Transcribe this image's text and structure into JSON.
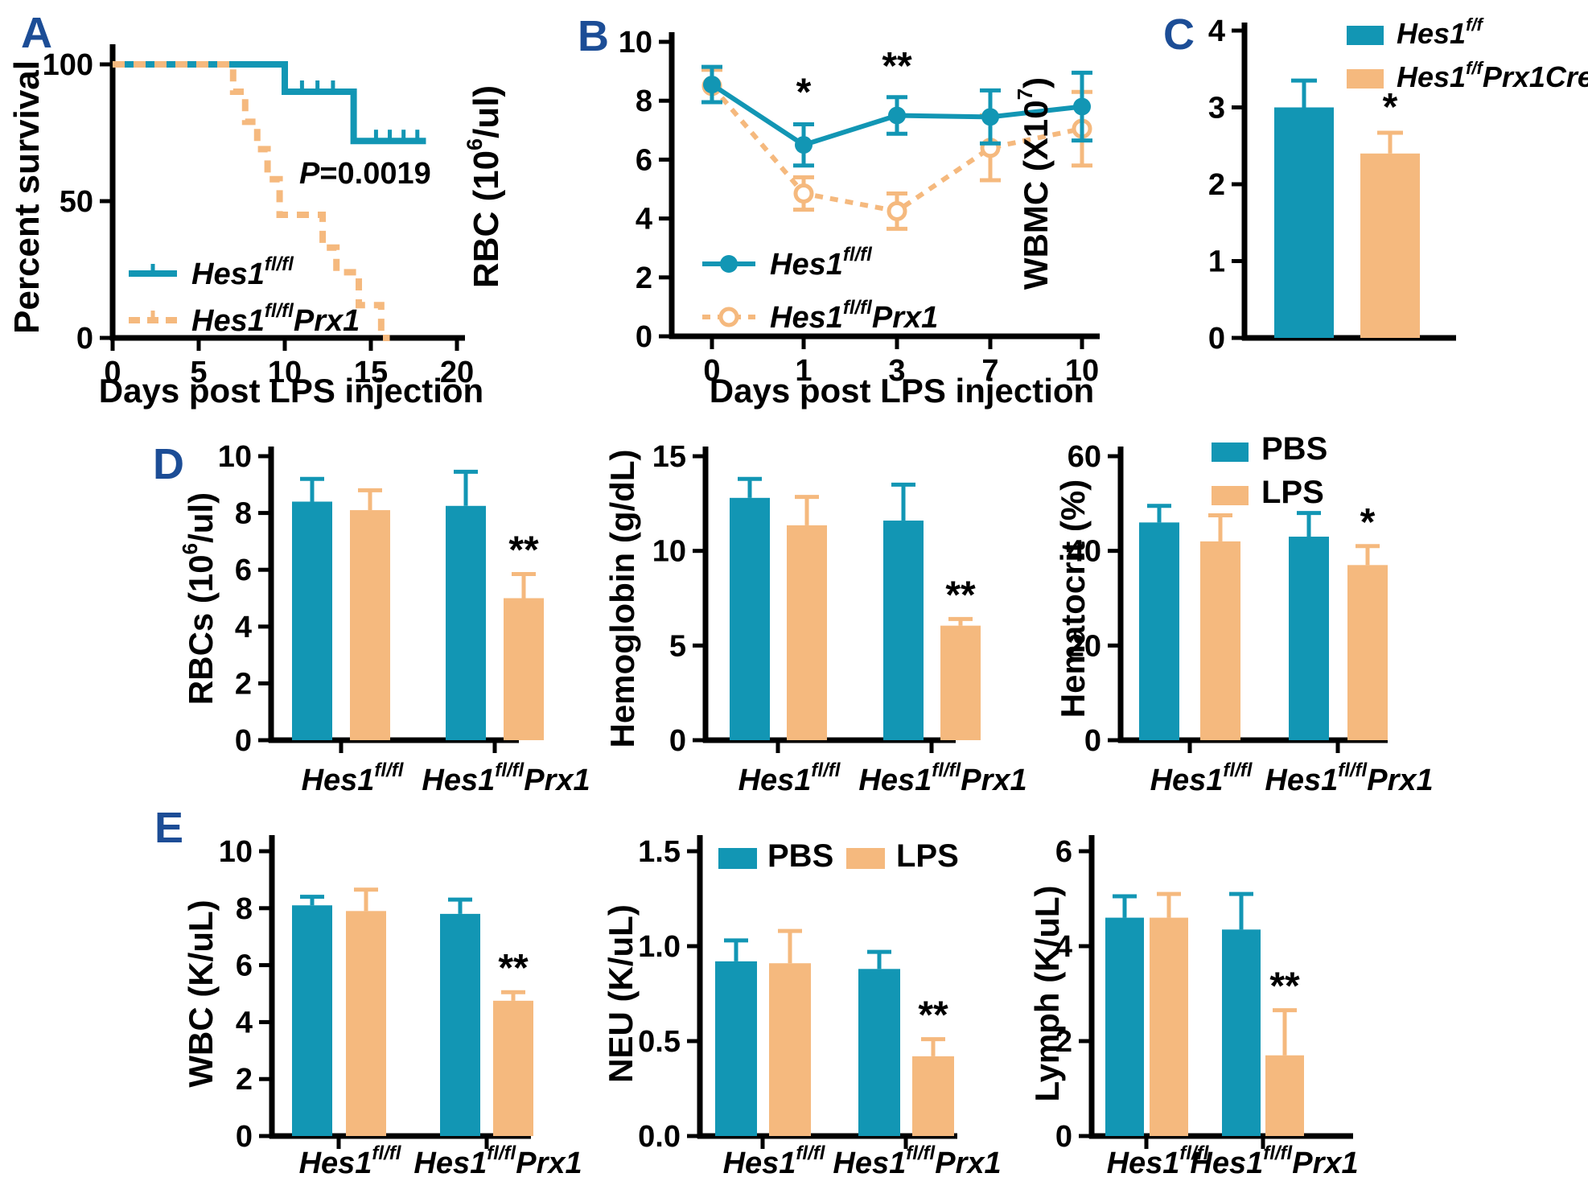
{
  "colors": {
    "teal": "#1296B4",
    "orange": "#F5B97E",
    "panel_label": "#1C4D96",
    "axis": "#000000"
  },
  "panel_letters": {
    "A": "A",
    "B": "B",
    "C": "C",
    "D": "D",
    "E": "E"
  },
  "chart_data": [
    {
      "id": "A",
      "type": "km_step",
      "title": "",
      "ylabel": "Percent survival",
      "xlabel": "Days post  LPS injection",
      "yticks": [
        0,
        50,
        100
      ],
      "xticks": [
        0,
        5,
        10,
        15,
        20
      ],
      "xlim": [
        0,
        21
      ],
      "ylim": [
        0,
        100
      ],
      "grid": false,
      "pvalue": {
        "italic": "P",
        "rest": "=0.0019"
      },
      "series": [
        {
          "name": "Hes1 fl/fl",
          "color": "teal",
          "dashed": false,
          "steps": [
            [
              0,
              100
            ],
            [
              10,
              100
            ],
            [
              10,
              90
            ],
            [
              14,
              90
            ],
            [
              14,
              72
            ],
            [
              18.2,
              72
            ]
          ],
          "censors": [
            [
              11,
              90
            ],
            [
              11.9,
              90
            ],
            [
              12.8,
              90
            ],
            [
              15.3,
              72
            ],
            [
              16.1,
              72
            ],
            [
              16.9,
              72
            ],
            [
              17.7,
              72
            ]
          ]
        },
        {
          "name": "Hes1 fl/fl Prx1",
          "color": "orange",
          "dashed": true,
          "steps": [
            [
              0,
              100
            ],
            [
              7,
              100
            ],
            [
              7,
              90
            ],
            [
              7.7,
              90
            ],
            [
              7.7,
              79
            ],
            [
              8.4,
              79
            ],
            [
              8.4,
              69
            ],
            [
              9,
              69
            ],
            [
              9,
              58
            ],
            [
              9.7,
              58
            ],
            [
              9.7,
              45
            ],
            [
              12.2,
              45
            ],
            [
              12.2,
              33
            ],
            [
              13,
              33
            ],
            [
              13,
              24
            ],
            [
              14.3,
              24
            ],
            [
              14.3,
              12
            ],
            [
              15.6,
              12
            ],
            [
              15.6,
              0
            ],
            [
              16.1,
              0
            ]
          ],
          "censors": []
        }
      ],
      "legend": [
        {
          "base": "Hes1",
          "sup": "fl/fl",
          "tail": "",
          "color": "teal"
        },
        {
          "base": "Hes1",
          "sup": "fl/fl",
          "tail": "Prx1",
          "color": "orange"
        }
      ]
    },
    {
      "id": "B",
      "type": "line_error",
      "ylabel": {
        "pre": "RBC (10",
        "sup": "6",
        "post": "/ul)"
      },
      "xlabel": "Days post LPS injection",
      "categories": [
        "0",
        "1",
        "3",
        "7",
        "10"
      ],
      "yticks": [
        0,
        2,
        4,
        6,
        8,
        10
      ],
      "ylim": [
        0,
        10
      ],
      "grid": false,
      "series": [
        {
          "name": "Hes1 fl/fl",
          "color": "teal",
          "dashed": false,
          "marker": "filled",
          "values": [
            8.55,
            6.5,
            7.5,
            7.45,
            7.8
          ],
          "errors": [
            0.6,
            0.7,
            0.62,
            0.9,
            1.15
          ]
        },
        {
          "name": "Hes1 fl/fl Prx1",
          "color": "orange",
          "dashed": true,
          "marker": "open",
          "values": [
            8.5,
            4.85,
            4.25,
            6.4,
            7.05
          ],
          "errors": [
            0.55,
            0.55,
            0.6,
            1.1,
            1.25
          ]
        }
      ],
      "sig": [
        {
          "index": 1,
          "text": "*",
          "value": 7.85
        },
        {
          "index": 2,
          "text": "**",
          "value": 8.75
        }
      ],
      "legend": [
        {
          "base": "Hes1",
          "sup": "fl/fl",
          "tail": "",
          "color": "teal"
        },
        {
          "base": "Hes1",
          "sup": "fl/fl",
          "tail": "Prx1",
          "color": "orange"
        }
      ]
    },
    {
      "id": "C",
      "type": "bar",
      "ylabel": {
        "pre": "WBMC (X10",
        "sup": "7",
        "post": ")"
      },
      "yticks": [
        0,
        1,
        2,
        3,
        4
      ],
      "ylim": [
        0,
        4
      ],
      "grid": false,
      "bars": [
        {
          "name": "Hes1 f/f",
          "color": "teal",
          "value": 3.0,
          "error": 0.35,
          "sig": ""
        },
        {
          "name": "Hes1 f/f Prx1Cre",
          "color": "orange",
          "value": 2.4,
          "error": 0.27,
          "sig": "*"
        }
      ],
      "legend": [
        {
          "base": "Hes1",
          "sup": "f/f",
          "tail": "",
          "color": "teal"
        },
        {
          "base": "Hes1",
          "sup": "f/f",
          "tail": "Prx1Cre",
          "color": "orange"
        }
      ]
    },
    {
      "id": "D1",
      "type": "grouped_bar",
      "ylabel": {
        "pre": "RBCs (10",
        "sup": "6",
        "post": "/ul)"
      },
      "yticks": [
        0,
        2,
        4,
        6,
        8,
        10
      ],
      "ylim": [
        0,
        10
      ],
      "grid": false,
      "groups": [
        {
          "base": "Hes1",
          "sup": "fl/fl",
          "tail": ""
        },
        {
          "base": "Hes1",
          "sup": "fl/fl",
          "tail": "Prx1"
        }
      ],
      "series": [
        {
          "name": "PBS",
          "color": "teal",
          "values": [
            8.4,
            8.25
          ],
          "errors": [
            0.8,
            1.2
          ]
        },
        {
          "name": "LPS",
          "color": "orange",
          "values": [
            8.1,
            5.0
          ],
          "errors": [
            0.7,
            0.85
          ]
        }
      ],
      "sig": [
        {
          "group": 1,
          "series": 1,
          "text": "**"
        }
      ]
    },
    {
      "id": "D2",
      "type": "grouped_bar",
      "ylabel": {
        "pre": "Hemoglobin (g/dL)",
        "sup": "",
        "post": ""
      },
      "yticks": [
        0,
        5,
        10,
        15
      ],
      "ylim": [
        0,
        15
      ],
      "grid": false,
      "groups": [
        {
          "base": "Hes1",
          "sup": "fl/fl",
          "tail": ""
        },
        {
          "base": "Hes1",
          "sup": "fl/fl",
          "tail": "Prx1"
        }
      ],
      "series": [
        {
          "name": "PBS",
          "color": "teal",
          "values": [
            12.8,
            11.6
          ],
          "errors": [
            1.0,
            1.9
          ]
        },
        {
          "name": "LPS",
          "color": "orange",
          "values": [
            11.35,
            6.05
          ],
          "errors": [
            1.5,
            0.35
          ]
        }
      ],
      "sig": [
        {
          "group": 1,
          "series": 1,
          "text": "**"
        }
      ]
    },
    {
      "id": "D3",
      "type": "grouped_bar",
      "ylabel": {
        "pre": "Hematocrit (%)",
        "sup": "",
        "post": ""
      },
      "yticks": [
        0,
        20,
        40,
        60
      ],
      "ylim": [
        0,
        60
      ],
      "grid": false,
      "groups": [
        {
          "base": "Hes1",
          "sup": "fl/fl",
          "tail": ""
        },
        {
          "base": "Hes1",
          "sup": "fl/fl",
          "tail": "Prx1"
        }
      ],
      "series": [
        {
          "name": "PBS",
          "color": "teal",
          "values": [
            46,
            43
          ],
          "errors": [
            3.5,
            5
          ]
        },
        {
          "name": "LPS",
          "color": "orange",
          "values": [
            42,
            37
          ],
          "errors": [
            5.5,
            4
          ]
        }
      ],
      "sig": [
        {
          "group": 1,
          "series": 1,
          "text": "*"
        }
      ],
      "legend": [
        "PBS",
        "LPS"
      ]
    },
    {
      "id": "E1",
      "type": "grouped_bar",
      "ylabel": {
        "pre": "WBC (K/uL)",
        "sup": "",
        "post": ""
      },
      "yticks": [
        0,
        2,
        4,
        6,
        8,
        10
      ],
      "ylim": [
        0,
        10
      ],
      "grid": false,
      "groups": [
        {
          "base": "Hes1",
          "sup": "fl/fl",
          "tail": ""
        },
        {
          "base": "Hes1",
          "sup": "fl/fl",
          "tail": "Prx1"
        }
      ],
      "series": [
        {
          "name": "PBS",
          "color": "teal",
          "values": [
            8.1,
            7.8
          ],
          "errors": [
            0.3,
            0.5
          ]
        },
        {
          "name": "LPS",
          "color": "orange",
          "values": [
            7.9,
            4.75
          ],
          "errors": [
            0.75,
            0.3
          ]
        }
      ],
      "sig": [
        {
          "group": 1,
          "series": 1,
          "text": "**"
        }
      ]
    },
    {
      "id": "E2",
      "type": "grouped_bar",
      "ylabel": {
        "pre": "NEU (K/uL)",
        "sup": "",
        "post": ""
      },
      "yticks": [
        "0.0",
        "0.5",
        "1.0",
        "1.5"
      ],
      "ylim": [
        0,
        1.5
      ],
      "grid": false,
      "groups": [
        {
          "base": "Hes1",
          "sup": "fl/fl",
          "tail": ""
        },
        {
          "base": "Hes1",
          "sup": "fl/fl",
          "tail": "Prx1"
        }
      ],
      "series": [
        {
          "name": "PBS",
          "color": "teal",
          "values": [
            0.92,
            0.88
          ],
          "errors": [
            0.11,
            0.09
          ]
        },
        {
          "name": "LPS",
          "color": "orange",
          "values": [
            0.91,
            0.42
          ],
          "errors": [
            0.17,
            0.09
          ]
        }
      ],
      "sig": [
        {
          "group": 1,
          "series": 1,
          "text": "**"
        }
      ],
      "legend": [
        "PBS",
        "LPS"
      ]
    },
    {
      "id": "E3",
      "type": "grouped_bar",
      "ylabel": {
        "pre": "Lymph (K/uL)",
        "sup": "",
        "post": ""
      },
      "yticks": [
        0,
        2,
        4,
        6
      ],
      "ylim": [
        0,
        6
      ],
      "grid": false,
      "groups": [
        {
          "base": "Hes1",
          "sup": "fl/fl",
          "tail": ""
        },
        {
          "base": "Hes1",
          "sup": "fl/fl",
          "tail": "Prx1"
        }
      ],
      "series": [
        {
          "name": "PBS",
          "color": "teal",
          "values": [
            4.6,
            4.35
          ],
          "errors": [
            0.45,
            0.75
          ]
        },
        {
          "name": "LPS",
          "color": "orange",
          "values": [
            4.6,
            1.7
          ],
          "errors": [
            0.5,
            0.95
          ]
        }
      ],
      "sig": [
        {
          "group": 1,
          "series": 1,
          "text": "**"
        }
      ]
    }
  ]
}
